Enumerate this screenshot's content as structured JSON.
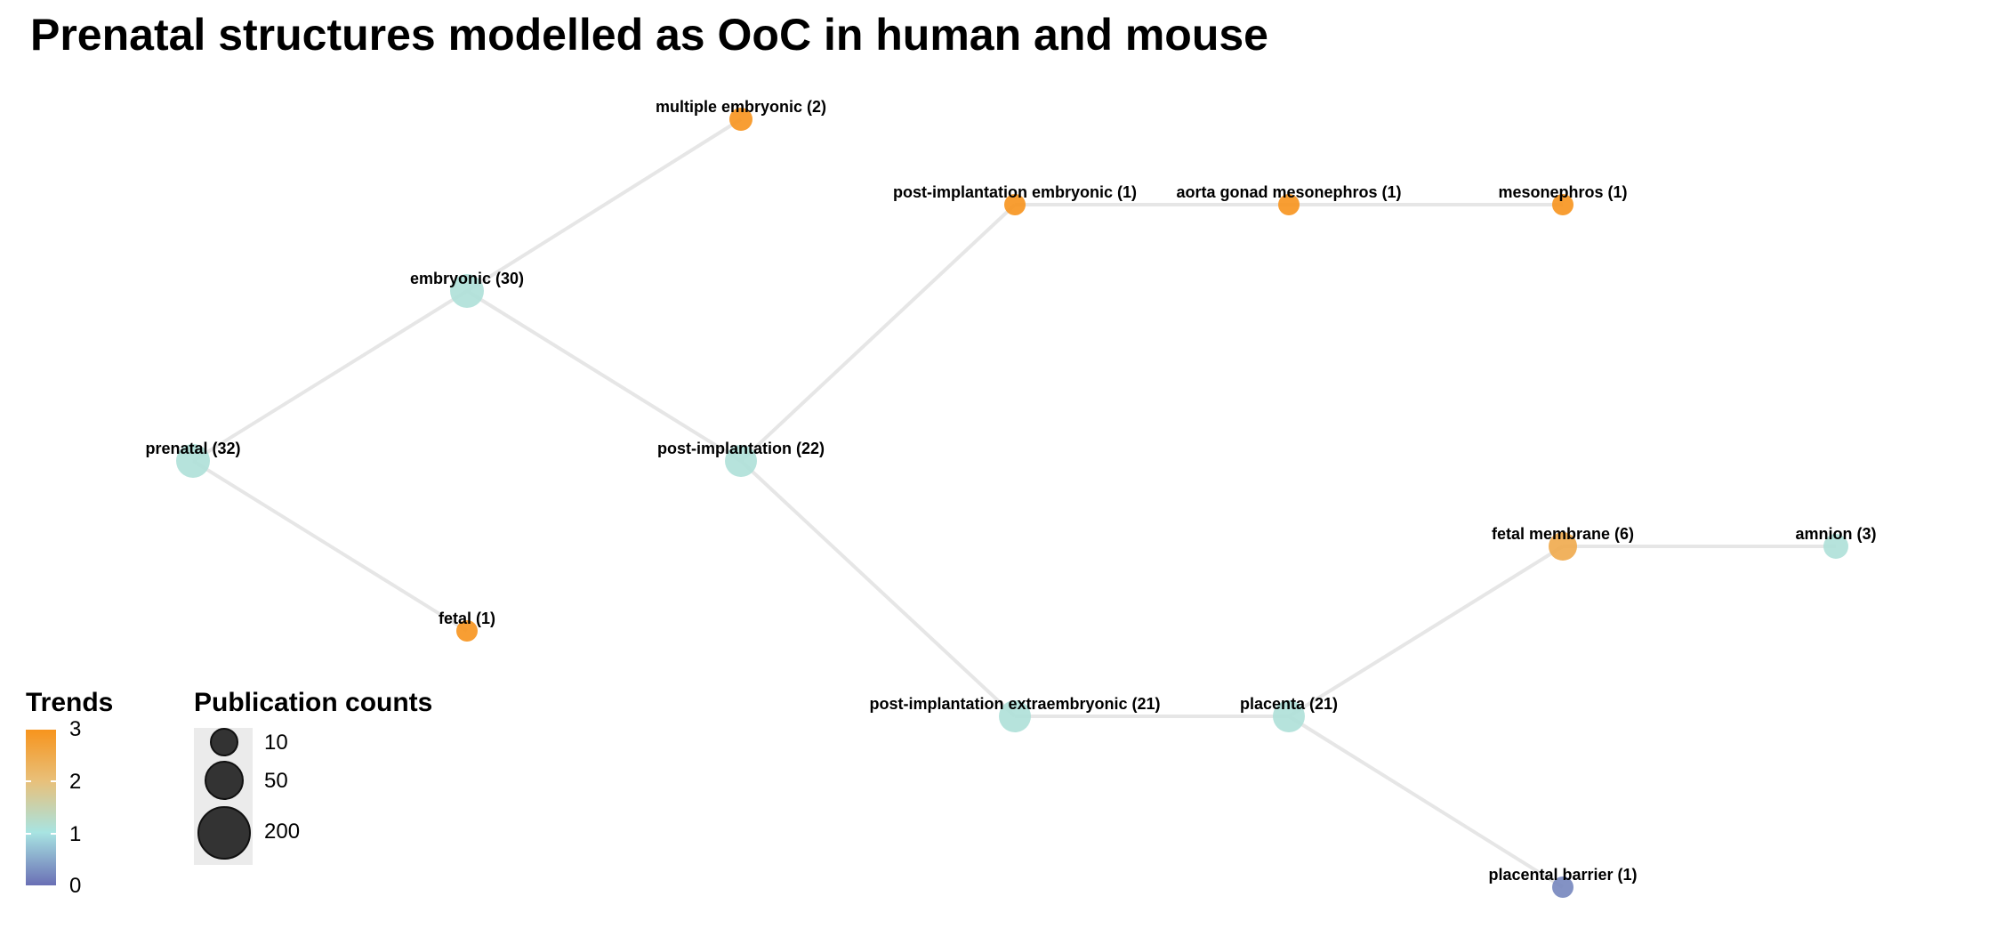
{
  "title": "Prenatal structures modelled as OoC in human and mouse",
  "nodes": [
    {
      "id": "prenatal",
      "label": "prenatal (32)",
      "trend": 1.1
    },
    {
      "id": "embryonic",
      "label": "embryonic (30)",
      "trend": 1.1
    },
    {
      "id": "fetal",
      "label": "fetal (1)",
      "trend": 3
    },
    {
      "id": "multiple_embryonic",
      "label": "multiple embryonic (2)",
      "trend": 3
    },
    {
      "id": "post_implantation",
      "label": "post-implantation (22)",
      "trend": 1.1
    },
    {
      "id": "post_impl_embryonic",
      "label": "post-implantation embryonic (1)",
      "trend": 3
    },
    {
      "id": "agm",
      "label": "aorta gonad mesonephros (1)",
      "trend": 3
    },
    {
      "id": "mesonephros",
      "label": "mesonephros (1)",
      "trend": 3
    },
    {
      "id": "post_impl_extraembryonic",
      "label": "post-implantation extraembryonic (21)",
      "trend": 1.1
    },
    {
      "id": "placenta",
      "label": "placenta (21)",
      "trend": 1.1
    },
    {
      "id": "fetal_membrane",
      "label": "fetal membrane (6)",
      "trend": 2.5
    },
    {
      "id": "amnion",
      "label": "amnion (3)",
      "trend": 1.1
    },
    {
      "id": "placental_barrier",
      "label": "placental barrier (1)",
      "trend": 0.2
    }
  ],
  "edges": [
    [
      "prenatal",
      "embryonic"
    ],
    [
      "prenatal",
      "fetal"
    ],
    [
      "embryonic",
      "multiple_embryonic"
    ],
    [
      "embryonic",
      "post_implantation"
    ],
    [
      "post_implantation",
      "post_impl_embryonic"
    ],
    [
      "post_impl_embryonic",
      "agm"
    ],
    [
      "agm",
      "mesonephros"
    ],
    [
      "post_implantation",
      "post_impl_extraembryonic"
    ],
    [
      "post_impl_extraembryonic",
      "placenta"
    ],
    [
      "placenta",
      "fetal_membrane"
    ],
    [
      "fetal_membrane",
      "amnion"
    ],
    [
      "placenta",
      "placental_barrier"
    ]
  ],
  "legend": {
    "trends": {
      "title": "Trends",
      "ticks": [
        "3",
        "2",
        "1",
        "0"
      ],
      "colors": {
        "high": "#f7941d",
        "mid_high": "#e8c07a",
        "mid": "#a8e4e2",
        "low": "#6a6fb5"
      }
    },
    "publication_counts": {
      "title": "Publication counts",
      "entries": [
        "10",
        "50",
        "200"
      ]
    }
  }
}
